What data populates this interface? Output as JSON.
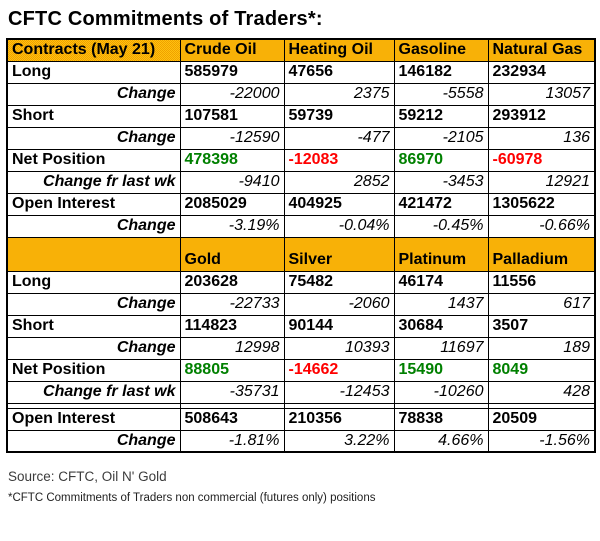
{
  "page": {
    "title": "CFTC Commitments of Traders*:",
    "source_line": "Source: CFTC, Oil N' Gold",
    "footnote": "*CFTC Commitments of Traders non commercial (futures only) positions"
  },
  "colors": {
    "border": "#000000",
    "header_bg": "#F5AD00",
    "header_bg_light": "#FFC20E",
    "header_bg_dark": "#F0A000",
    "label_bg": "#F9D5AF",
    "label_bg_light": "#FBDDC2",
    "label_bg_dark": "#F6CD9E",
    "positive": "#008000",
    "negative": "#FF0000"
  },
  "table": {
    "sections": [
      {
        "tall": false,
        "header": [
          "Contracts (May 21)",
          "Crude Oil",
          "Heating Oil",
          "Gasoline",
          "Natural Gas"
        ],
        "rows": [
          {
            "label": "Long",
            "type": "main",
            "values": [
              "585979",
              "47656",
              "146182",
              "232934"
            ]
          },
          {
            "label": "Change",
            "type": "change",
            "values": [
              "-22000",
              "2375",
              "-5558",
              "13057"
            ]
          },
          {
            "label": "Short",
            "type": "main",
            "values": [
              "107581",
              "59739",
              "59212",
              "293912"
            ]
          },
          {
            "label": "Change",
            "type": "change",
            "values": [
              "-12590",
              "-477",
              "-2105",
              "136"
            ]
          },
          {
            "label": "Net Position",
            "type": "net",
            "values": [
              "478398",
              "-12083",
              "86970",
              "-60978"
            ]
          },
          {
            "label": "Change fr last wk",
            "type": "change",
            "values": [
              "-9410",
              "2852",
              "-3453",
              "12921"
            ]
          },
          {
            "label": "Open Interest",
            "type": "main",
            "values": [
              "2085029",
              "404925",
              "421472",
              "1305622"
            ]
          },
          {
            "label": "Change",
            "type": "change",
            "values": [
              "-3.19%",
              "-0.04%",
              "-0.45%",
              "-0.66%"
            ]
          }
        ]
      },
      {
        "tall": true,
        "header": [
          "",
          "Gold",
          "Silver",
          "Platinum",
          "Palladium"
        ],
        "rows": [
          {
            "label": "Long",
            "type": "main",
            "values": [
              "203628",
              "75482",
              "46174",
              "11556"
            ]
          },
          {
            "label": "Change",
            "type": "change",
            "values": [
              "-22733",
              "-2060",
              "1437",
              "617"
            ]
          },
          {
            "label": "Short",
            "type": "main",
            "values": [
              "114823",
              "90144",
              "30684",
              "3507"
            ]
          },
          {
            "label": "Change",
            "type": "change",
            "values": [
              "12998",
              "10393",
              "11697",
              "189"
            ]
          },
          {
            "label": "Net Position",
            "type": "net",
            "values": [
              "88805",
              "-14662",
              "15490",
              "8049"
            ]
          },
          {
            "label": "Change fr last wk",
            "type": "change",
            "values": [
              "-35731",
              "-12453",
              "-10260",
              "428"
            ]
          },
          {
            "label": "",
            "type": "spacer",
            "values": [
              "",
              "",
              "",
              ""
            ]
          },
          {
            "label": "Open Interest",
            "type": "main",
            "values": [
              "508643",
              "210356",
              "78838",
              "20509"
            ]
          },
          {
            "label": "Change",
            "type": "change",
            "values": [
              "-1.81%",
              "3.22%",
              "4.66%",
              "-1.56%"
            ]
          }
        ]
      }
    ]
  },
  "chart_data": {
    "type": "table",
    "title": "CFTC Commitments of Traders*:",
    "footnote": "*CFTC Commitments of Traders non commercial (futures only) positions",
    "source": "Source: CFTC, Oil N' Gold",
    "tables": [
      {
        "columns": [
          "Contracts (May 21)",
          "Crude Oil",
          "Heating Oil",
          "Gasoline",
          "Natural Gas"
        ],
        "rows": [
          [
            "Long",
            585979,
            47656,
            146182,
            232934
          ],
          [
            "Change",
            -22000,
            2375,
            -5558,
            13057
          ],
          [
            "Short",
            107581,
            59739,
            59212,
            293912
          ],
          [
            "Change",
            -12590,
            -477,
            -2105,
            136
          ],
          [
            "Net Position",
            478398,
            -12083,
            86970,
            -60978
          ],
          [
            "Change fr last wk",
            -9410,
            2852,
            -3453,
            12921
          ],
          [
            "Open Interest",
            2085029,
            404925,
            421472,
            1305622
          ],
          [
            "Change",
            "-3.19%",
            "-0.04%",
            "-0.45%",
            "-0.66%"
          ]
        ]
      },
      {
        "columns": [
          "",
          "Gold",
          "Silver",
          "Platinum",
          "Palladium"
        ],
        "rows": [
          [
            "Long",
            203628,
            75482,
            46174,
            11556
          ],
          [
            "Change",
            -22733,
            -2060,
            1437,
            617
          ],
          [
            "Short",
            114823,
            90144,
            30684,
            3507
          ],
          [
            "Change",
            12998,
            10393,
            11697,
            189
          ],
          [
            "Net Position",
            88805,
            -14662,
            15490,
            8049
          ],
          [
            "Change fr last wk",
            -35731,
            -12453,
            -10260,
            428
          ],
          [
            "Open Interest",
            508643,
            210356,
            78838,
            20509
          ],
          [
            "Change",
            "-1.81%",
            "3.22%",
            "4.66%",
            "-1.56%"
          ]
        ]
      }
    ]
  }
}
